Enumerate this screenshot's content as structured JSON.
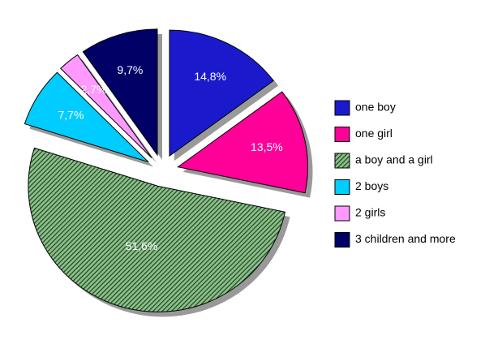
{
  "chart_data": {
    "type": "pie",
    "categories": [
      "one boy",
      "one girl",
      "a boy and a girl",
      "2 boys",
      "2 girls",
      "3 children and more"
    ],
    "values": [
      14.8,
      13.5,
      51.6,
      7.7,
      2.7,
      9.7
    ],
    "value_labels": [
      "14,8%",
      "13,5%",
      "51,6%",
      "7,7%",
      "2,7%",
      "9,7%"
    ],
    "colors": [
      "#1a1acc",
      "#ff0099",
      "#2f5f2f",
      "#00ccff",
      "#ff99ff",
      "#000066"
    ],
    "legend": "right"
  }
}
